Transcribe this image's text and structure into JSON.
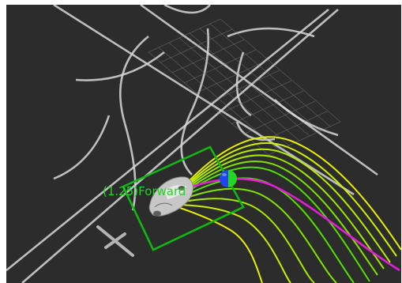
{
  "viewport": {
    "background_color": "#2c2c2c"
  },
  "overlay": {
    "trajectory_label": "(1.25)Forward"
  },
  "colors": {
    "lane_lines": "#d8d8d8",
    "grid": "#8a8a8a",
    "candidate_paths_outer": "#e6ef00",
    "candidate_paths_inner": "#52e000",
    "selected_path": "#e21ed6",
    "footprint_box": "#12b812",
    "goal_marker_left": "#2244ee",
    "goal_marker_right": "#22d822",
    "scale_bar": "#b4b4b4"
  },
  "icons": {
    "vehicle": "car-icon",
    "goal": "goal-sphere-icon"
  }
}
